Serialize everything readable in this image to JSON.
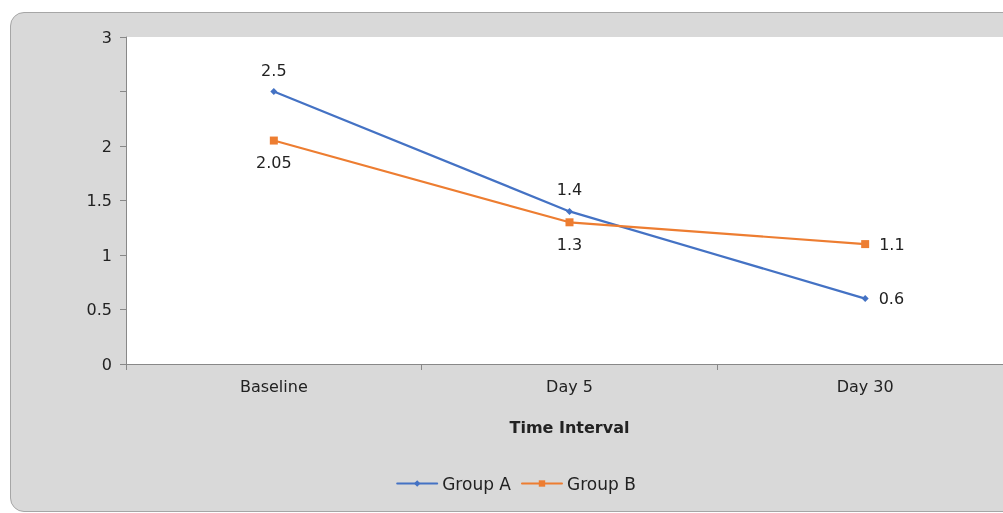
{
  "chart_data": {
    "type": "line",
    "xlabel": "Time Interval",
    "categories": [
      "Baseline",
      "Day 5",
      "Day 30"
    ],
    "series": [
      {
        "name": "Group A",
        "color": "#4472c4",
        "values": [
          2.5,
          1.4,
          0.6
        ],
        "marker": "diamond"
      },
      {
        "name": "Group B",
        "color": "#ed7d31",
        "values": [
          2.05,
          1.3,
          1.1
        ],
        "marker": "square"
      }
    ],
    "ylim": [
      0,
      3
    ],
    "yticks": [
      0,
      0.5,
      1,
      1.5,
      2,
      {
        "value": 2.5,
        "label": null
      },
      3
    ],
    "data_labels": true,
    "grid": false,
    "legend": "bottom"
  }
}
